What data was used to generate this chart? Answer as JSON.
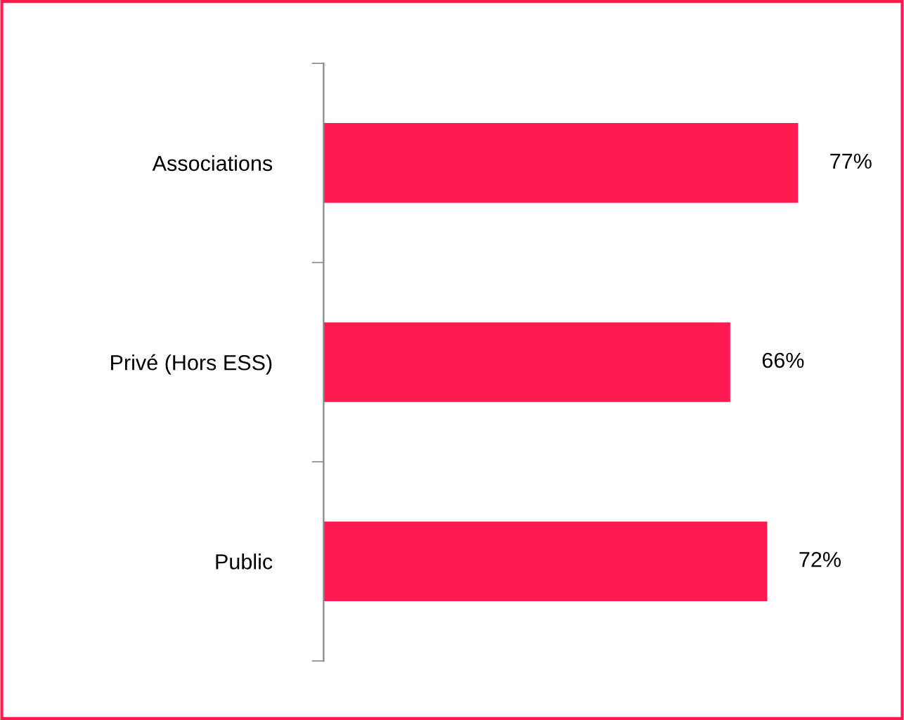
{
  "chart_data": {
    "type": "bar",
    "orientation": "horizontal",
    "categories": [
      "Associations",
      "Privé (Hors ESS)",
      "Public"
    ],
    "values": [
      77,
      66,
      72
    ],
    "value_labels": [
      "77%",
      "66%",
      "72%"
    ],
    "color": "#ff1a50",
    "tick_labels": "y",
    "grid": false,
    "legend": false
  }
}
